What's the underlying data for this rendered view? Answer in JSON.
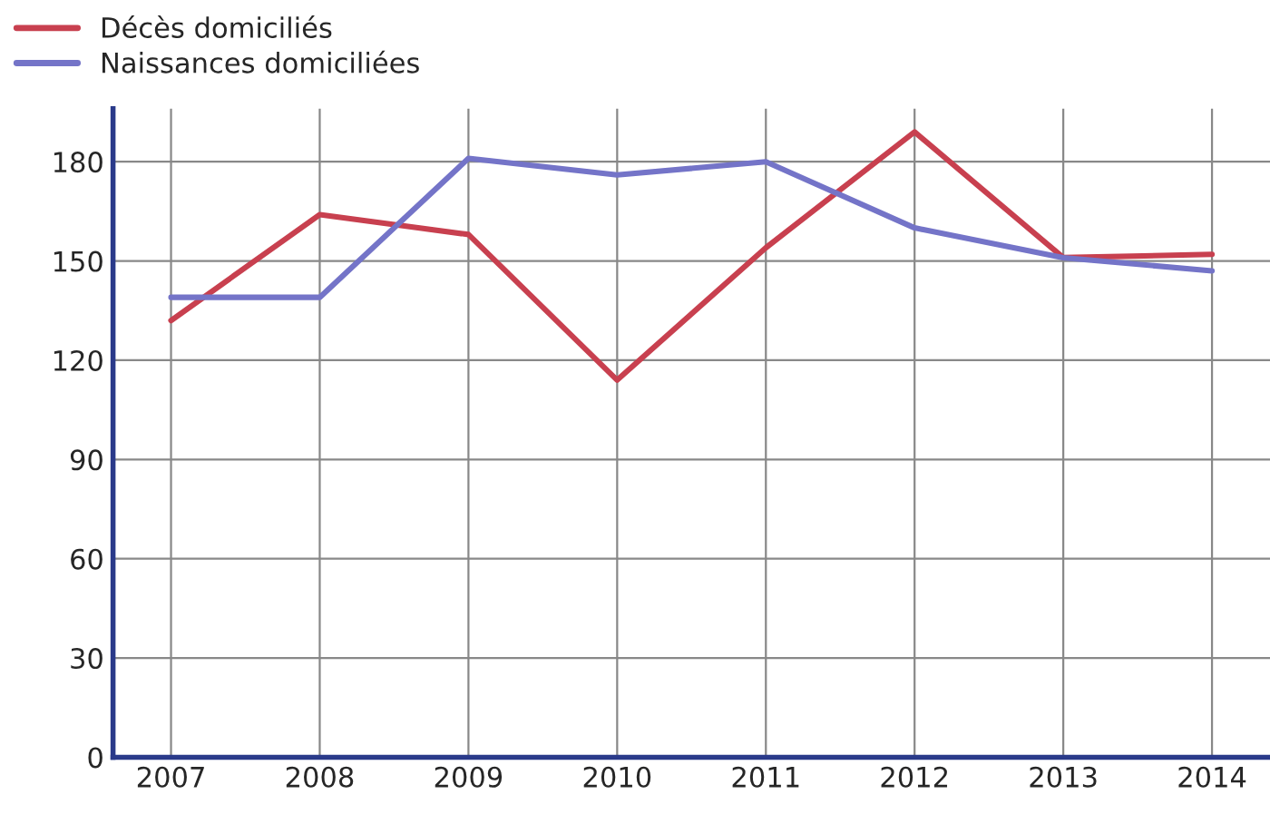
{
  "chart_data": {
    "type": "line",
    "categories": [
      "2007",
      "2008",
      "2009",
      "2010",
      "2011",
      "2012",
      "2013",
      "2014"
    ],
    "series": [
      {
        "name": "Décès domiciliés",
        "color": "#c8404f",
        "values": [
          132,
          164,
          158,
          114,
          154,
          189,
          151,
          152
        ]
      },
      {
        "name": "Naissances domiciliées",
        "color": "#7474c8",
        "values": [
          139,
          139,
          181,
          176,
          180,
          160,
          151,
          147
        ]
      }
    ],
    "ylim": [
      0,
      196
    ],
    "yticks": [
      0,
      30,
      60,
      90,
      120,
      150,
      180
    ],
    "grid": true,
    "legend": "top left",
    "marker": "none",
    "line_style": "solid"
  }
}
